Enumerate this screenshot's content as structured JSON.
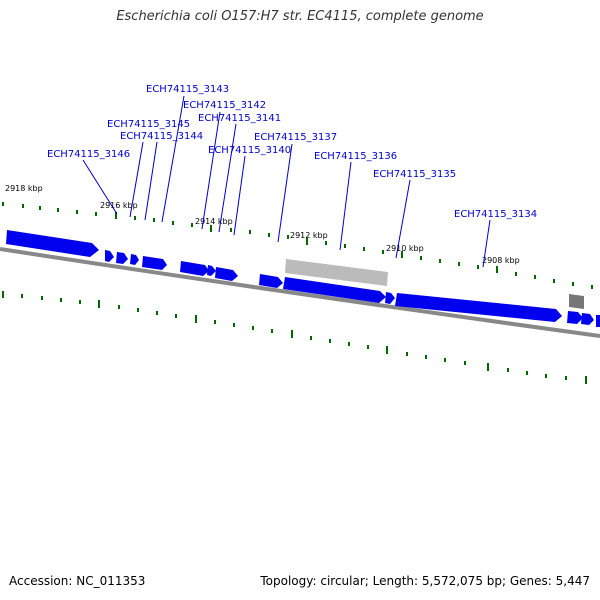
{
  "title": "Escherichia coli O157:H7 str. EC4115, complete genome",
  "footer": {
    "accession": "Accession: NC_011353",
    "summary": "Topology: circular; Length: 5,572,075 bp; Genes: 5,447"
  },
  "colors": {
    "gene": "#0000ee",
    "gene_label": "#0000cc",
    "other_feature": "#bbbbbb",
    "backbone": "#888888",
    "tick": "#006600"
  },
  "kbp_labels": [
    "2918 kbp",
    "2916 kbp",
    "2914 kbp",
    "2912 kbp",
    "2910 kbp",
    "2908 kbp"
  ],
  "gene_labels": [
    "ECH74115_3143",
    "ECH74115_3142",
    "ECH74115_3145",
    "ECH74115_3141",
    "ECH74115_3144",
    "ECH74115_3137",
    "ECH74115_3146",
    "ECH74115_3140",
    "ECH74115_3136",
    "ECH74115_3135",
    "ECH74115_3134"
  ]
}
